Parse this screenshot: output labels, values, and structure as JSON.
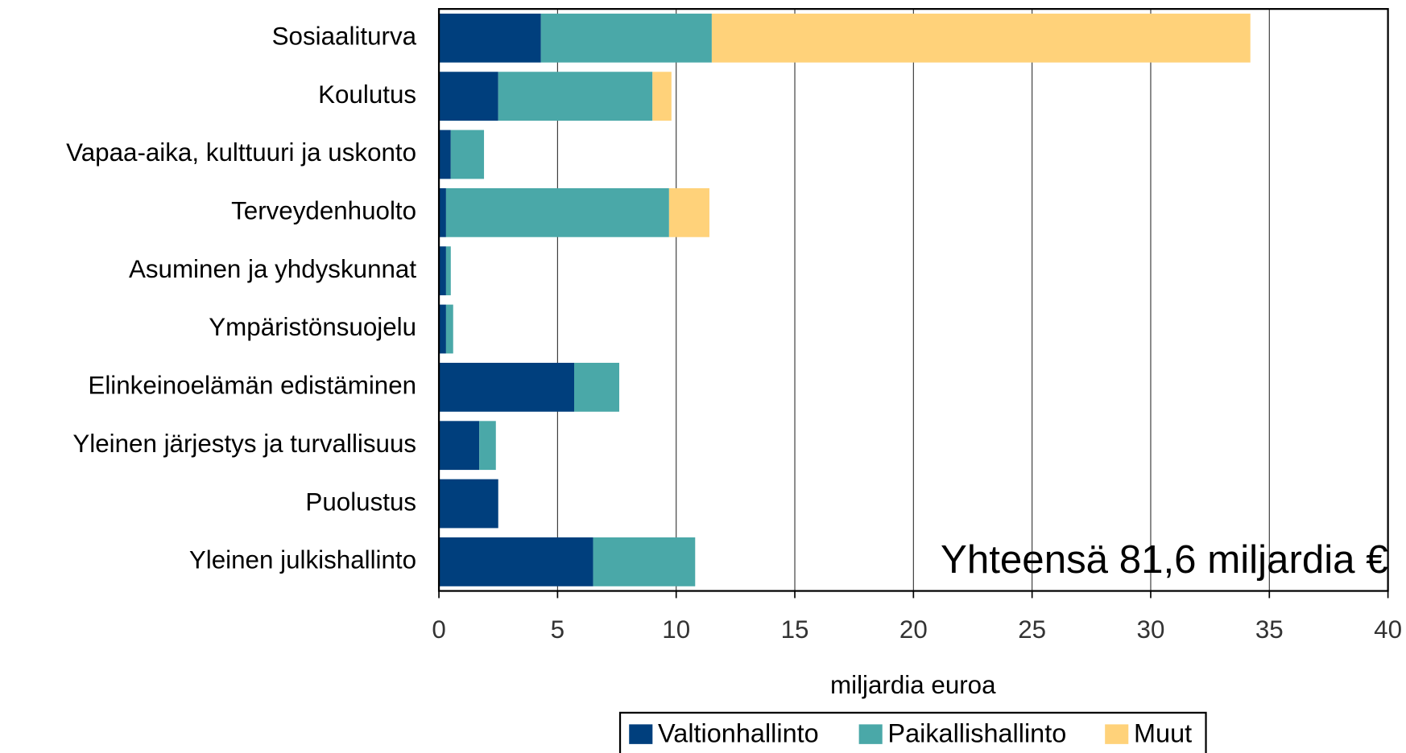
{
  "chart_data": {
    "type": "stacked_barh",
    "categories": [
      "Sosiaaliturva",
      "Koulutus",
      "Vapaa-aika, kulttuuri ja uskonto",
      "Terveydenhuolto",
      "Asuminen ja yhdyskunnat",
      "Ympäristönsuojelu",
      "Elinkeinoelämän edistäminen",
      "Yleinen järjestys ja turvallisuus",
      "Puolustus",
      "Yleinen julkishallinto"
    ],
    "series": [
      {
        "name": "Valtionhallinto",
        "color": "#003f7d",
        "values": [
          4.3,
          2.5,
          0.5,
          0.3,
          0.3,
          0.3,
          5.7,
          1.7,
          2.5,
          6.5
        ]
      },
      {
        "name": "Paikallishallinto",
        "color": "#4aa8a8",
        "values": [
          7.2,
          6.5,
          1.4,
          9.4,
          0.2,
          0.3,
          1.9,
          0.7,
          0,
          4.3
        ]
      },
      {
        "name": "Muut",
        "color": "#ffd27a",
        "values": [
          22.7,
          0.8,
          0,
          1.7,
          0,
          0,
          0,
          0,
          0,
          0
        ]
      }
    ],
    "xlim": [
      0,
      40
    ],
    "xticks": [
      0,
      5,
      10,
      15,
      20,
      25,
      30,
      35,
      40
    ],
    "xlabel": "miljardia euroa",
    "annotation": "Yhteensä 81,6 miljardia €",
    "grid": true,
    "legend": "bottom"
  }
}
